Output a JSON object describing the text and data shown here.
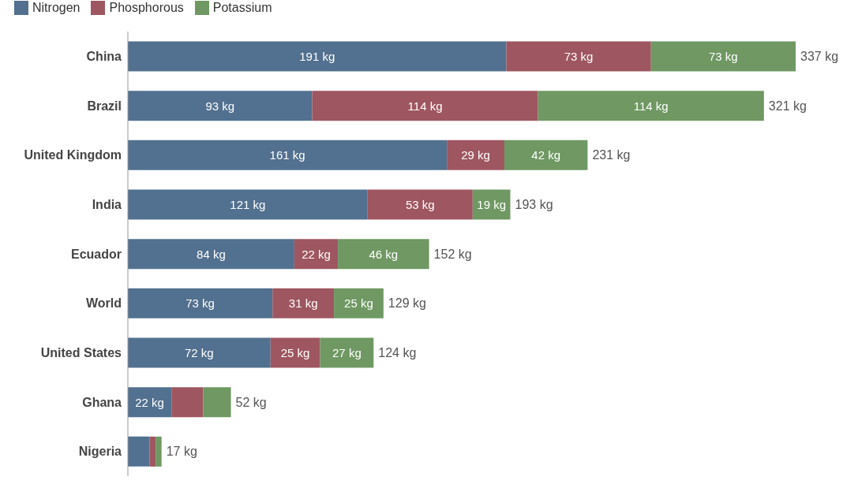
{
  "chart_data": {
    "type": "bar",
    "orientation": "horizontal",
    "stacked": true,
    "categories": [
      "China",
      "Brazil",
      "United Kingdom",
      "India",
      "Ecuador",
      "World",
      "United States",
      "Ghana",
      "Nigeria"
    ],
    "series": [
      {
        "name": "Nitrogen",
        "color": "#52708f",
        "values": [
          191,
          93,
          161,
          121,
          84,
          73,
          72,
          22,
          11
        ],
        "value_labels": [
          "191 kg",
          "93 kg",
          "161 kg",
          "121 kg",
          "84 kg",
          "73 kg",
          "72 kg",
          "22 kg",
          null
        ]
      },
      {
        "name": "Phosphorous",
        "color": "#9e5660",
        "values": [
          73,
          114,
          29,
          53,
          22,
          31,
          25,
          16,
          3
        ],
        "value_labels": [
          "73 kg",
          "114 kg",
          "29 kg",
          "53 kg",
          "22 kg",
          "31 kg",
          "25 kg",
          null,
          null
        ]
      },
      {
        "name": "Potassium",
        "color": "#6f9862",
        "values": [
          73,
          114,
          42,
          19,
          46,
          25,
          27,
          14,
          3
        ],
        "value_labels": [
          "73 kg",
          "114 kg",
          "42 kg",
          "19 kg",
          "46 kg",
          "25 kg",
          "27 kg",
          null,
          null
        ]
      }
    ],
    "totals": [
      "337 kg",
      "321 kg",
      "231 kg",
      "193 kg",
      "152 kg",
      "129 kg",
      "124 kg",
      "52 kg",
      "17 kg"
    ],
    "legend": "top left",
    "tick_labels": "y"
  }
}
